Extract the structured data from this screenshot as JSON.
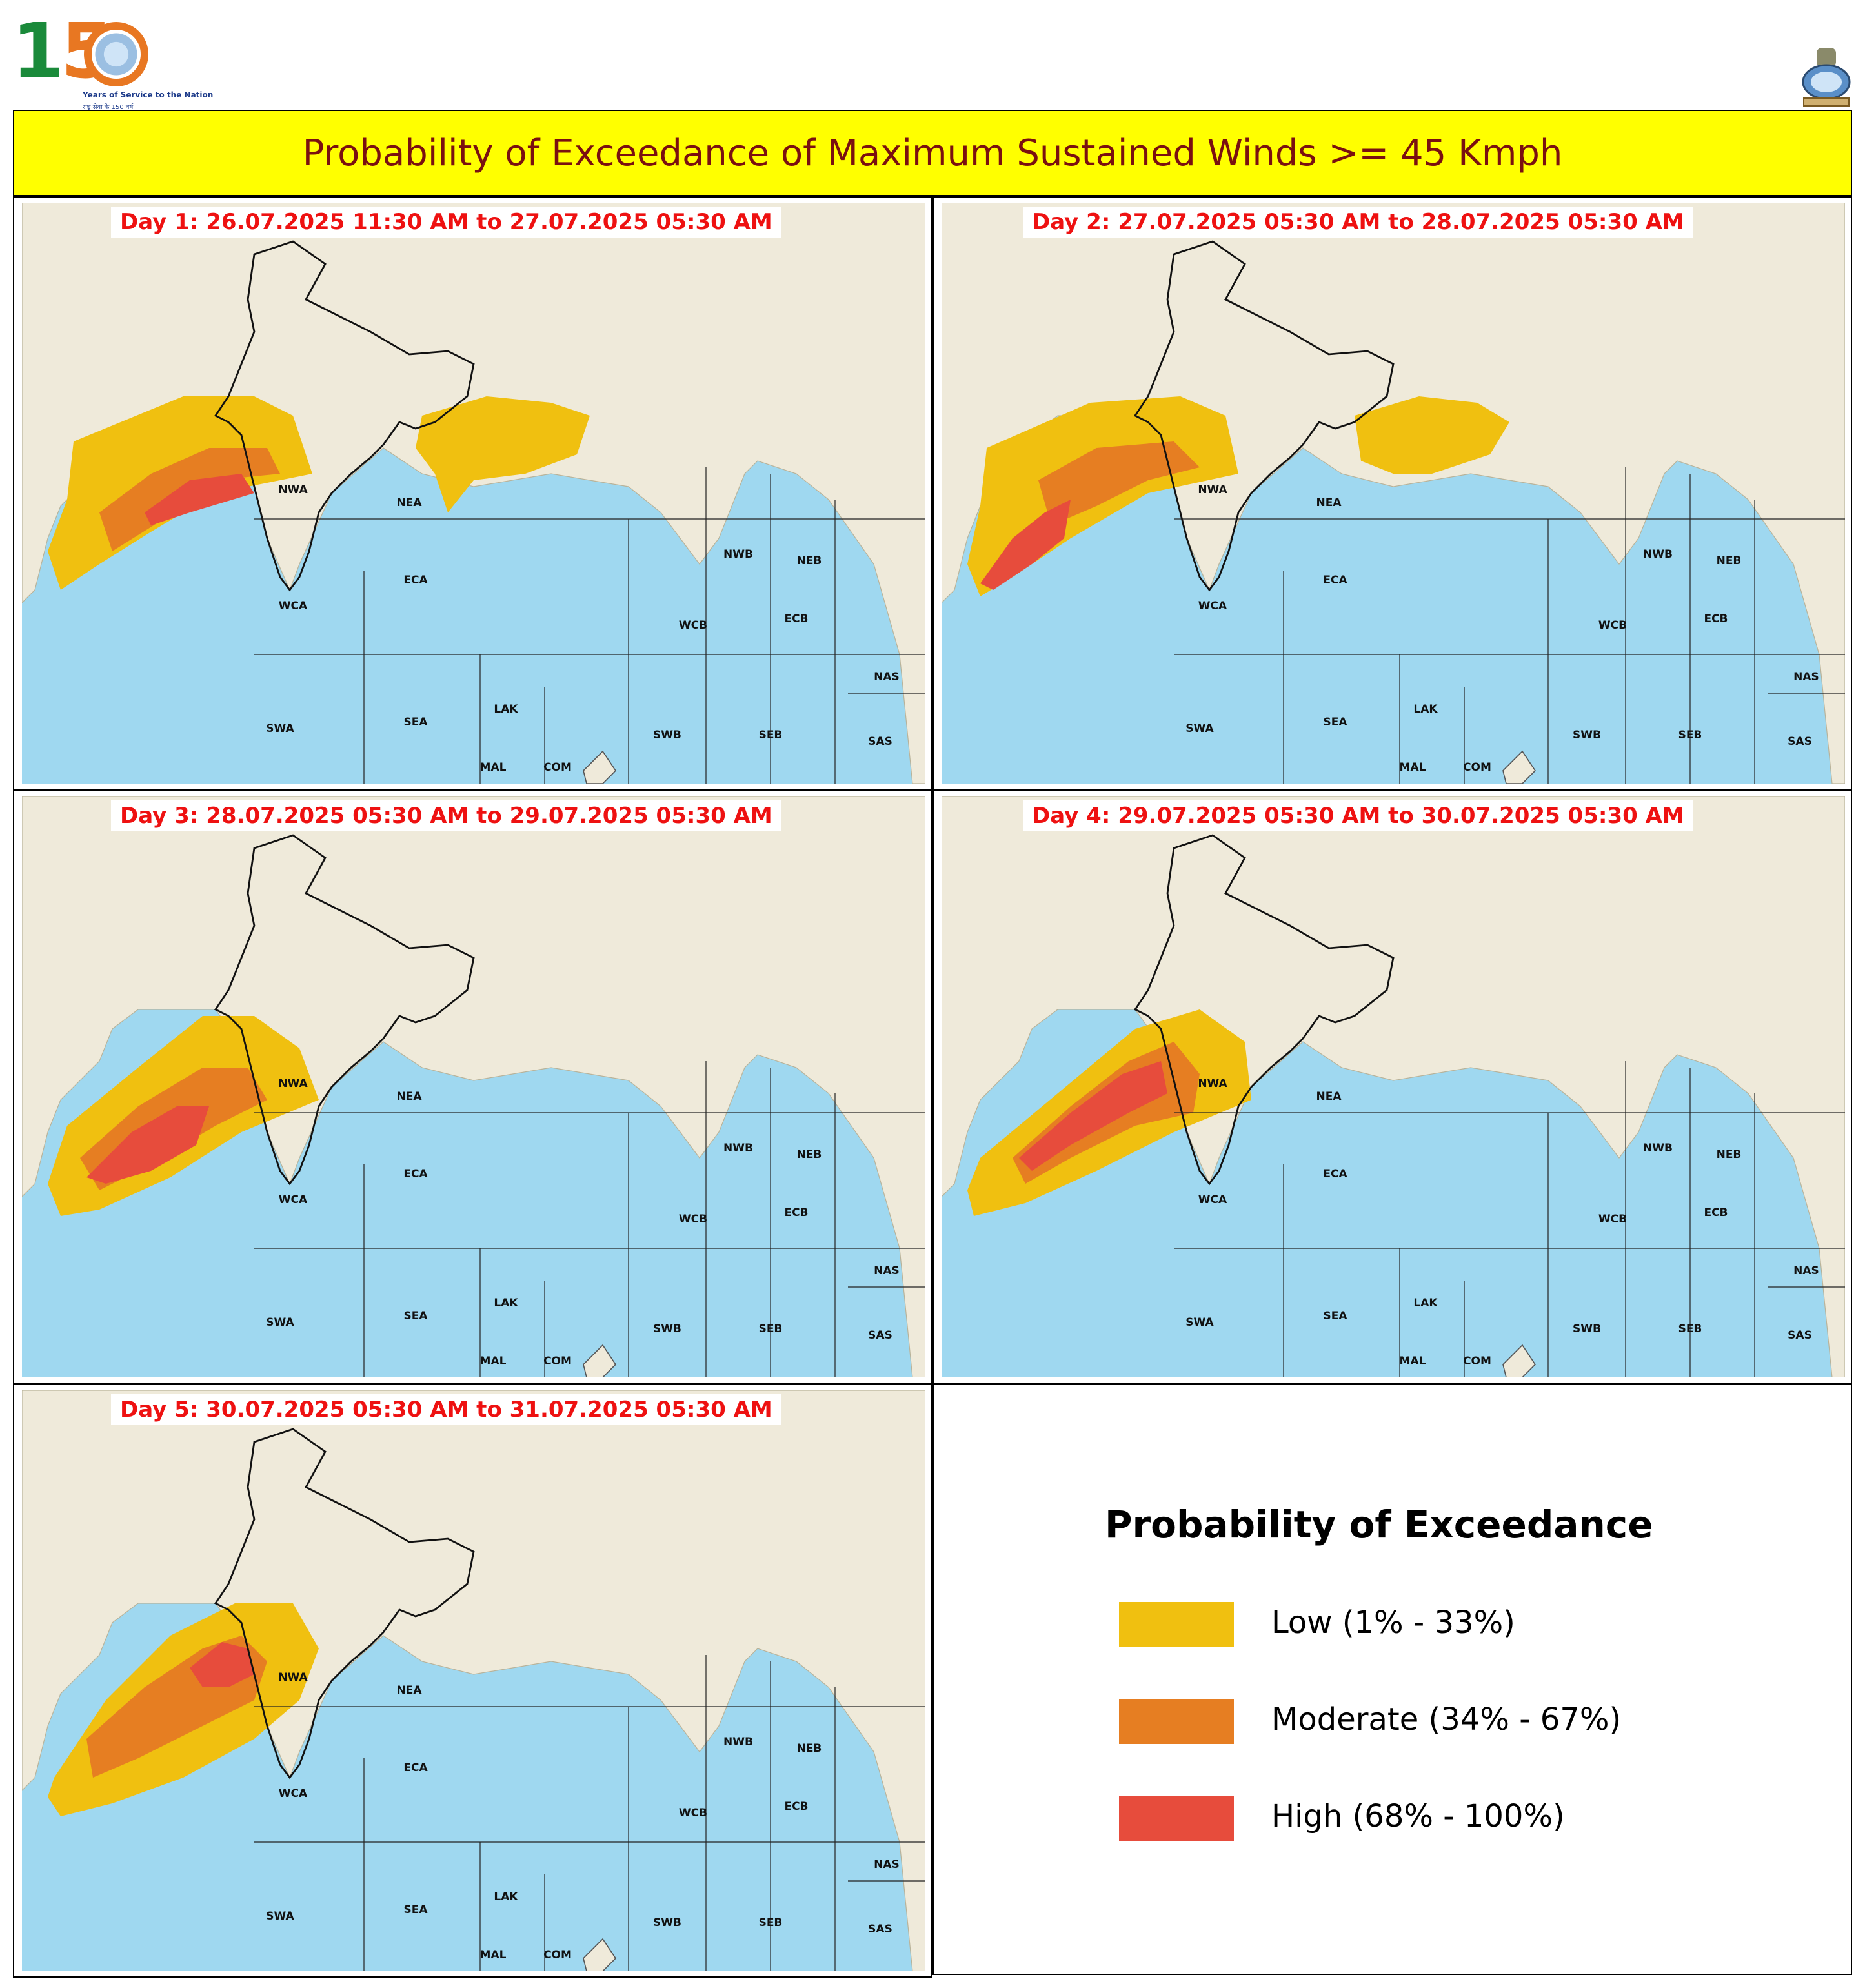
{
  "header": {
    "title": "Probability of Exceedance of Maximum Sustained Winds >= 45 Kmph",
    "logo_left": {
      "text": "150",
      "tagline": "Years of Service to the Nation",
      "tagline_hindi": "राष्ट्र सेवा के 150 वर्ष"
    },
    "logo_right": "national-emblem-icon"
  },
  "regions": [
    "NWA",
    "NEA",
    "WCA",
    "ECA",
    "SWA",
    "SEA",
    "LAK",
    "MAL",
    "COM",
    "NWB",
    "NEB",
    "WCB",
    "ECB",
    "SWB",
    "SEB",
    "NAS",
    "SAS"
  ],
  "colors": {
    "low": "#f0c010",
    "moderate": "#e67e22",
    "high": "#e74c3c",
    "sea": "#9fd8f0",
    "land": "#efeada",
    "title_bg": "#ffff00",
    "title_text": "#7a1010",
    "day_text": "#ee1111"
  },
  "panels": [
    {
      "label": "Day 1: 26.07.2025 11:30 AM to 27.07.2025 05:30 AM",
      "arabian_low": true,
      "arabian_moderate": true,
      "arabian_high": true,
      "bay_low": true
    },
    {
      "label": "Day 2: 27.07.2025 05:30 AM to 28.07.2025 05:30 AM",
      "arabian_low": true,
      "arabian_moderate": true,
      "arabian_high": true,
      "bay_low": true
    },
    {
      "label": "Day 3: 28.07.2025 05:30 AM to 29.07.2025 05:30 AM",
      "arabian_low": true,
      "arabian_moderate": true,
      "arabian_high": true,
      "bay_low": false
    },
    {
      "label": "Day 4: 29.07.2025 05:30 AM to 30.07.2025 05:30 AM",
      "arabian_low": true,
      "arabian_moderate": true,
      "arabian_high": true,
      "bay_low": false
    },
    {
      "label": "Day 5: 30.07.2025 05:30 AM to 31.07.2025 05:30 AM",
      "arabian_low": true,
      "arabian_moderate": true,
      "arabian_high": true,
      "bay_low": false
    }
  ],
  "legend": {
    "title": "Probability of Exceedance",
    "items": [
      {
        "label": "Low (1% - 33%)",
        "color": "#f0c010"
      },
      {
        "label": "Moderate (34% - 67%)",
        "color": "#e67e22"
      },
      {
        "label": "High (68% - 100%)",
        "color": "#e74c3c"
      }
    ]
  }
}
